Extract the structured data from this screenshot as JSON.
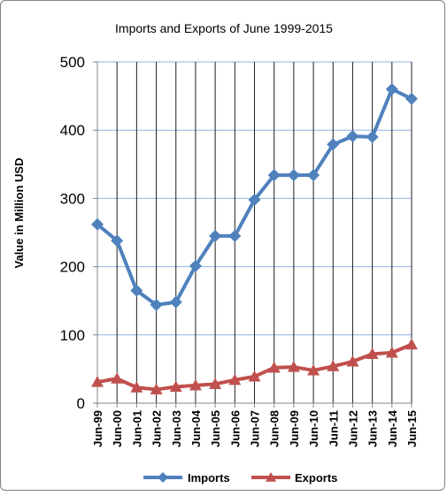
{
  "chart_data": {
    "type": "line",
    "title": "Imports and Exports of June 1999-2015",
    "xlabel": "",
    "ylabel": "Value in Million USD",
    "categories": [
      "Jun-99",
      "Jun-00",
      "Jun-01",
      "Jun-02",
      "Jun-03",
      "Jun-04",
      "Jun-05",
      "Jun-06",
      "Jun-07",
      "Jun-08",
      "Jun-09",
      "Jun-10",
      "Jun-11",
      "Jun-12",
      "Jun-13",
      "Jun-14",
      "Jun-15"
    ],
    "ylim": [
      0,
      500
    ],
    "yticks": [
      0,
      100,
      200,
      300,
      400,
      500
    ],
    "grid": true,
    "legend_position": "bottom",
    "series": [
      {
        "name": "Imports",
        "color": "#4f81bd",
        "marker": "diamond",
        "values": [
          262,
          238,
          165,
          144,
          148,
          201,
          245,
          245,
          298,
          334,
          334,
          334,
          379,
          391,
          390,
          460,
          446
        ]
      },
      {
        "name": "Exports",
        "color": "#c0504d",
        "marker": "triangle",
        "values": [
          31,
          36,
          23,
          20,
          24,
          26,
          28,
          34,
          39,
          52,
          53,
          48,
          54,
          61,
          72,
          74,
          86
        ]
      }
    ]
  }
}
